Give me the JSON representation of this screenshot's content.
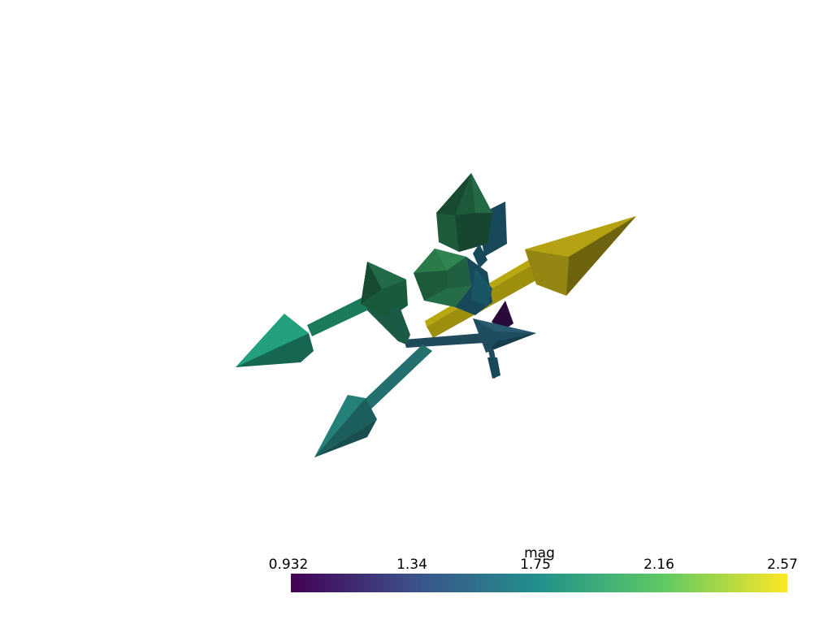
{
  "colorbar": {
    "title": "mag",
    "ticks": [
      "0.932",
      "1.34",
      "1.75",
      "2.16",
      "2.57"
    ],
    "colormap": "viridis",
    "gradient_stops": [
      "#440154",
      "#3b528b",
      "#21918c",
      "#5ec962",
      "#fde725"
    ]
  },
  "scene": {
    "background": "#ffffff",
    "glyph_type": "arrow",
    "glyph_colors": [
      "#1b8a6b",
      "#23706f",
      "#1e4a5c",
      "#b9a70f",
      "#1a5a3c",
      "#2a7a4a",
      "#17495a",
      "#2a0a3a"
    ]
  }
}
